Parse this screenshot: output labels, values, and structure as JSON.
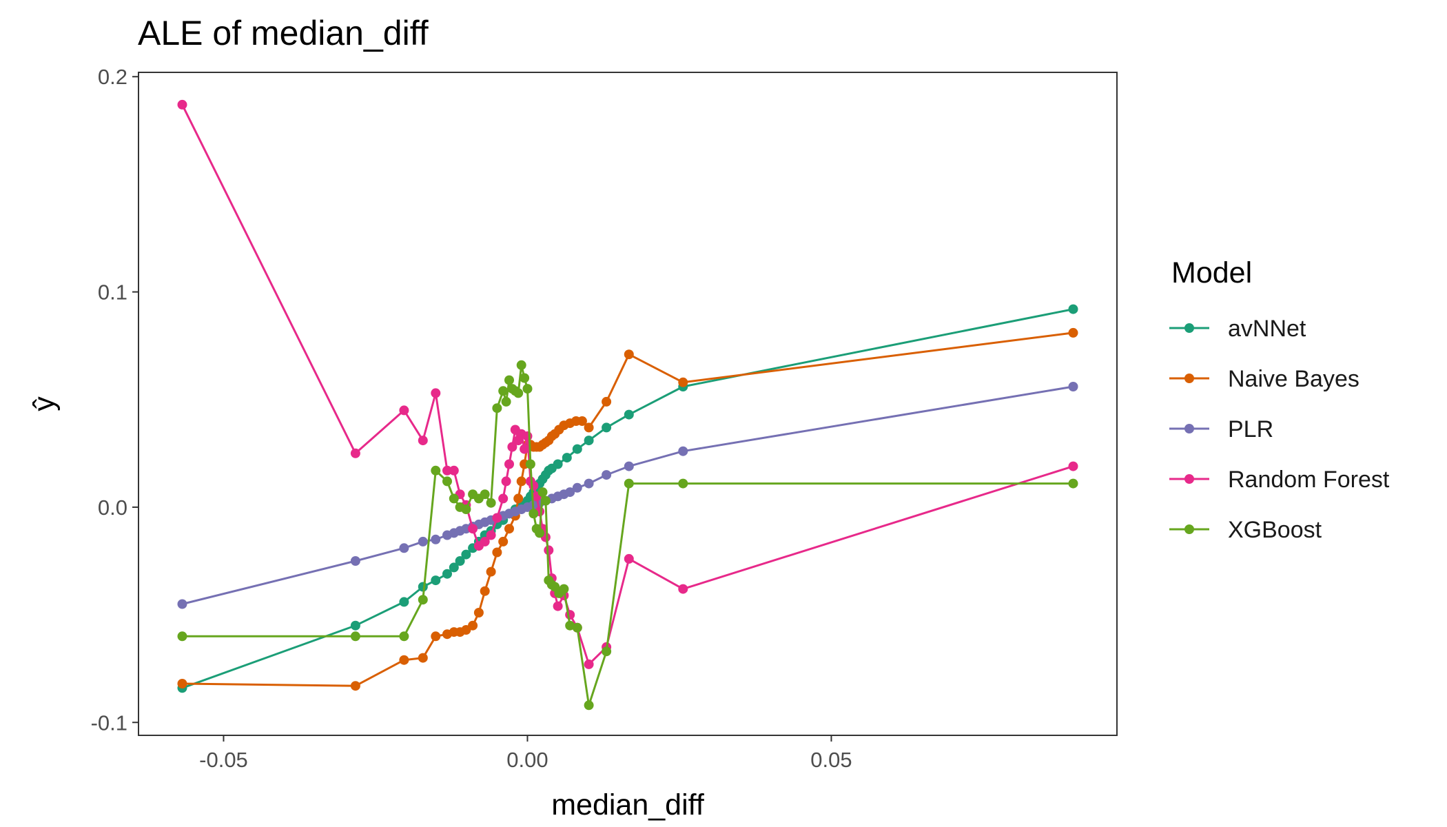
{
  "chart_data": {
    "type": "line",
    "title": "ALE of median_diff",
    "xlabel": "median_diff",
    "ylabel": "ŷ",
    "xlim": [
      -0.064,
      0.097
    ],
    "ylim": [
      -0.106,
      0.202
    ],
    "x_ticks": [
      -0.05,
      0.0,
      0.05
    ],
    "x_tick_labels": [
      "-0.05",
      "0.00",
      "0.05"
    ],
    "y_ticks": [
      -0.1,
      0.0,
      0.1,
      0.2
    ],
    "y_tick_labels": [
      "-0.1",
      "0.0",
      "0.1",
      "0.2"
    ],
    "grid": false,
    "legend_position": "right",
    "legend_title": "Model",
    "series": [
      {
        "name": "avNNet",
        "color": "#1b9e77",
        "points": [
          [
            -0.0568,
            -0.084
          ],
          [
            -0.0283,
            -0.055
          ],
          [
            -0.0203,
            -0.044
          ],
          [
            -0.0172,
            -0.037
          ],
          [
            -0.0151,
            -0.034
          ],
          [
            -0.0132,
            -0.031
          ],
          [
            -0.0121,
            -0.028
          ],
          [
            -0.0111,
            -0.025
          ],
          [
            -0.0101,
            -0.022
          ],
          [
            -0.009,
            -0.019
          ],
          [
            -0.008,
            -0.016
          ],
          [
            -0.007,
            -0.013
          ],
          [
            -0.006,
            -0.011
          ],
          [
            -0.005,
            -0.008
          ],
          [
            -0.004,
            -0.006
          ],
          [
            -0.003,
            -0.003
          ],
          [
            -0.002,
            -0.001
          ],
          [
            -0.001,
            0.001
          ],
          [
            0.0,
            0.003
          ],
          [
            0.0005,
            0.005
          ],
          [
            0.001,
            0.007
          ],
          [
            0.0015,
            0.009
          ],
          [
            0.002,
            0.011
          ],
          [
            0.0025,
            0.013
          ],
          [
            0.003,
            0.015
          ],
          [
            0.0035,
            0.017
          ],
          [
            0.004,
            0.018
          ],
          [
            0.005,
            0.02
          ],
          [
            0.0065,
            0.023
          ],
          [
            0.0082,
            0.027
          ],
          [
            0.0101,
            0.031
          ],
          [
            0.013,
            0.037
          ],
          [
            0.0167,
            0.043
          ],
          [
            0.0256,
            0.056
          ],
          [
            0.0898,
            0.092
          ]
        ]
      },
      {
        "name": "Naive Bayes",
        "color": "#d95f02",
        "points": [
          [
            -0.0568,
            -0.082
          ],
          [
            -0.0283,
            -0.083
          ],
          [
            -0.0203,
            -0.071
          ],
          [
            -0.0172,
            -0.07
          ],
          [
            -0.0151,
            -0.06
          ],
          [
            -0.0132,
            -0.059
          ],
          [
            -0.0121,
            -0.058
          ],
          [
            -0.0111,
            -0.058
          ],
          [
            -0.0101,
            -0.057
          ],
          [
            -0.009,
            -0.055
          ],
          [
            -0.008,
            -0.049
          ],
          [
            -0.007,
            -0.039
          ],
          [
            -0.006,
            -0.03
          ],
          [
            -0.005,
            -0.021
          ],
          [
            -0.004,
            -0.016
          ],
          [
            -0.003,
            -0.01
          ],
          [
            -0.002,
            -0.004
          ],
          [
            -0.0015,
            0.004
          ],
          [
            -0.001,
            0.012
          ],
          [
            -0.0005,
            0.02
          ],
          [
            0.0,
            0.029
          ],
          [
            0.0005,
            0.029
          ],
          [
            0.001,
            0.028
          ],
          [
            0.0015,
            0.028
          ],
          [
            0.002,
            0.028
          ],
          [
            0.0025,
            0.029
          ],
          [
            0.003,
            0.03
          ],
          [
            0.0035,
            0.031
          ],
          [
            0.004,
            0.033
          ],
          [
            0.0045,
            0.034
          ],
          [
            0.0052,
            0.036
          ],
          [
            0.006,
            0.038
          ],
          [
            0.007,
            0.039
          ],
          [
            0.008,
            0.04
          ],
          [
            0.009,
            0.04
          ],
          [
            0.0101,
            0.037
          ],
          [
            0.013,
            0.049
          ],
          [
            0.0167,
            0.071
          ],
          [
            0.0256,
            0.058
          ],
          [
            0.0898,
            0.081
          ]
        ]
      },
      {
        "name": "PLR",
        "color": "#7570b3",
        "points": [
          [
            -0.0568,
            -0.045
          ],
          [
            -0.0283,
            -0.025
          ],
          [
            -0.0203,
            -0.019
          ],
          [
            -0.0172,
            -0.016
          ],
          [
            -0.0151,
            -0.015
          ],
          [
            -0.0132,
            -0.013
          ],
          [
            -0.0121,
            -0.012
          ],
          [
            -0.0111,
            -0.011
          ],
          [
            -0.0101,
            -0.01
          ],
          [
            -0.009,
            -0.009
          ],
          [
            -0.008,
            -0.008
          ],
          [
            -0.007,
            -0.007
          ],
          [
            -0.006,
            -0.006
          ],
          [
            -0.005,
            -0.005
          ],
          [
            -0.004,
            -0.004
          ],
          [
            -0.003,
            -0.003
          ],
          [
            -0.002,
            -0.002
          ],
          [
            -0.001,
            -0.001
          ],
          [
            0.0,
            0.0
          ],
          [
            0.001,
            0.001
          ],
          [
            0.002,
            0.002
          ],
          [
            0.003,
            0.003
          ],
          [
            0.004,
            0.004
          ],
          [
            0.005,
            0.005
          ],
          [
            0.006,
            0.006
          ],
          [
            0.007,
            0.007
          ],
          [
            0.0082,
            0.009
          ],
          [
            0.0101,
            0.011
          ],
          [
            0.013,
            0.015
          ],
          [
            0.0167,
            0.019
          ],
          [
            0.0256,
            0.026
          ],
          [
            0.0898,
            0.056
          ]
        ]
      },
      {
        "name": "Random Forest",
        "color": "#e7298a",
        "points": [
          [
            -0.0568,
            0.187
          ],
          [
            -0.0283,
            0.025
          ],
          [
            -0.0203,
            0.045
          ],
          [
            -0.0172,
            0.031
          ],
          [
            -0.0151,
            0.053
          ],
          [
            -0.0132,
            0.017
          ],
          [
            -0.0121,
            0.017
          ],
          [
            -0.0111,
            0.006
          ],
          [
            -0.0101,
            0.001
          ],
          [
            -0.009,
            -0.01
          ],
          [
            -0.008,
            -0.018
          ],
          [
            -0.007,
            -0.016
          ],
          [
            -0.006,
            -0.013
          ],
          [
            -0.005,
            -0.005
          ],
          [
            -0.004,
            0.004
          ],
          [
            -0.0035,
            0.012
          ],
          [
            -0.003,
            0.02
          ],
          [
            -0.0025,
            0.028
          ],
          [
            -0.002,
            0.036
          ],
          [
            -0.0015,
            0.031
          ],
          [
            -0.001,
            0.034
          ],
          [
            -0.0005,
            0.027
          ],
          [
            0.0,
            0.033
          ],
          [
            0.0005,
            0.012
          ],
          [
            0.001,
            0.01
          ],
          [
            0.0015,
            0.005
          ],
          [
            0.002,
            -0.002
          ],
          [
            0.0025,
            -0.01
          ],
          [
            0.003,
            -0.014
          ],
          [
            0.0035,
            -0.02
          ],
          [
            0.004,
            -0.033
          ],
          [
            0.0045,
            -0.04
          ],
          [
            0.005,
            -0.046
          ],
          [
            0.006,
            -0.041
          ],
          [
            0.007,
            -0.05
          ],
          [
            0.0082,
            -0.056
          ],
          [
            0.0101,
            -0.073
          ],
          [
            0.013,
            -0.065
          ],
          [
            0.0167,
            -0.024
          ],
          [
            0.0256,
            -0.038
          ],
          [
            0.0898,
            0.019
          ]
        ]
      },
      {
        "name": "XGBoost",
        "color": "#66a61e",
        "points": [
          [
            -0.0568,
            -0.06
          ],
          [
            -0.0283,
            -0.06
          ],
          [
            -0.0203,
            -0.06
          ],
          [
            -0.0172,
            -0.043
          ],
          [
            -0.0151,
            0.017
          ],
          [
            -0.0132,
            0.012
          ],
          [
            -0.0121,
            0.004
          ],
          [
            -0.0111,
            0.0
          ],
          [
            -0.0101,
            -0.001
          ],
          [
            -0.009,
            0.006
          ],
          [
            -0.008,
            0.004
          ],
          [
            -0.007,
            0.006
          ],
          [
            -0.006,
            0.002
          ],
          [
            -0.005,
            0.046
          ],
          [
            -0.004,
            0.054
          ],
          [
            -0.0035,
            0.049
          ],
          [
            -0.003,
            0.059
          ],
          [
            -0.0025,
            0.055
          ],
          [
            -0.002,
            0.054
          ],
          [
            -0.0015,
            0.053
          ],
          [
            -0.001,
            0.066
          ],
          [
            -0.0005,
            0.06
          ],
          [
            0.0,
            0.055
          ],
          [
            0.0005,
            0.02
          ],
          [
            0.001,
            -0.003
          ],
          [
            0.0015,
            -0.01
          ],
          [
            0.002,
            -0.012
          ],
          [
            0.0025,
            0.007
          ],
          [
            0.003,
            0.003
          ],
          [
            0.0035,
            -0.034
          ],
          [
            0.004,
            -0.036
          ],
          [
            0.0045,
            -0.037
          ],
          [
            0.0052,
            -0.04
          ],
          [
            0.006,
            -0.038
          ],
          [
            0.007,
            -0.055
          ],
          [
            0.0082,
            -0.056
          ],
          [
            0.0101,
            -0.092
          ],
          [
            0.013,
            -0.067
          ],
          [
            0.0167,
            0.011
          ],
          [
            0.0256,
            0.011
          ],
          [
            0.0898,
            0.011
          ]
        ]
      }
    ]
  }
}
